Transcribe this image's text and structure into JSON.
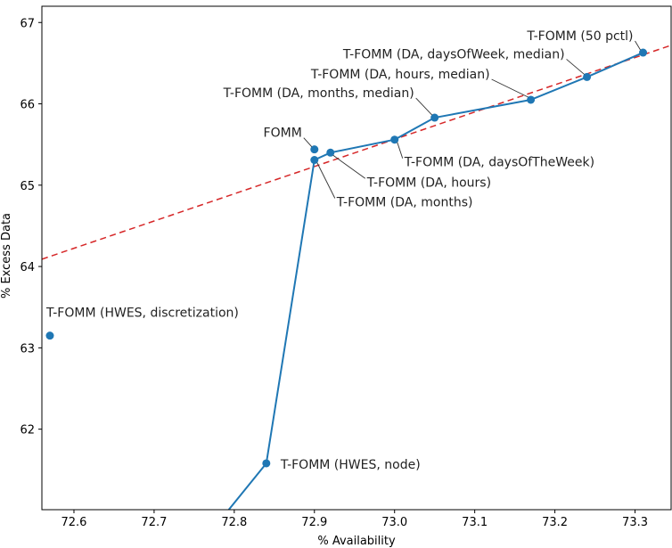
{
  "chart_data": {
    "type": "scatter",
    "xlabel": "% Availability",
    "ylabel": "% Excess Data",
    "xlim": [
      72.56,
      73.345
    ],
    "ylim": [
      61.01,
      67.2
    ],
    "xticks": [
      "72.6",
      "72.7",
      "72.8",
      "72.9",
      "73.0",
      "73.1",
      "73.2",
      "73.3"
    ],
    "yticks": [
      "62",
      "63",
      "64",
      "65",
      "66",
      "67"
    ],
    "grid": false,
    "colors": {
      "series": "#1f77b4",
      "trend": "#d62728"
    },
    "frontier_line": {
      "x": [
        72.78,
        72.84,
        72.9,
        72.92,
        73.0,
        73.05,
        73.17,
        73.24,
        73.31
      ],
      "y": [
        60.85,
        61.58,
        65.31,
        65.4,
        65.56,
        65.83,
        66.05,
        66.33,
        66.63
      ]
    },
    "trend_line": {
      "x": [
        72.56,
        73.345
      ],
      "y": [
        64.09,
        66.72
      ],
      "style": "dashed"
    },
    "points": [
      {
        "label": "T-FOMM (HWES, discretization)",
        "x": 72.57,
        "y": 63.15
      },
      {
        "label": "T-FOMM (HWES, node)",
        "x": 72.84,
        "y": 61.58
      },
      {
        "label": "T-FOMM (DA, months)",
        "x": 72.9,
        "y": 65.31
      },
      {
        "label": "FOMM",
        "x": 72.9,
        "y": 65.44
      },
      {
        "label": "T-FOMM (DA, hours)",
        "x": 72.92,
        "y": 65.4
      },
      {
        "label": "T-FOMM (DA, daysOfTheWeek)",
        "x": 73.0,
        "y": 65.56
      },
      {
        "label": "T-FOMM (DA, months, median)",
        "x": 73.05,
        "y": 65.83
      },
      {
        "label": "T-FOMM (DA, hours, median)",
        "x": 73.17,
        "y": 66.05
      },
      {
        "label": "T-FOMM (DA, daysOfWeek, median)",
        "x": 73.24,
        "y": 66.33
      },
      {
        "label": "T-FOMM (50 pctl)",
        "x": 73.31,
        "y": 66.63
      }
    ]
  }
}
